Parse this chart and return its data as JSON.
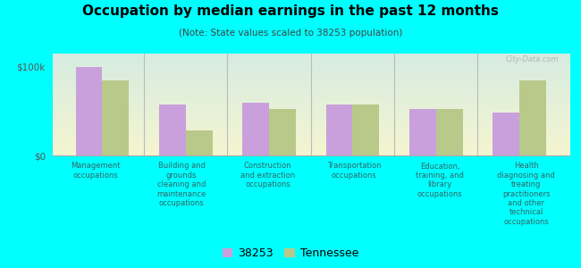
{
  "title": "Occupation by median earnings in the past 12 months",
  "subtitle": "(Note: State values scaled to 38253 population)",
  "categories": [
    "Management\noccupations",
    "Building and\ngrounds\ncleaning and\nmaintenance\noccupations",
    "Construction\nand extraction\noccupations",
    "Transportation\noccupations",
    "Education,\ntraining, and\nlibrary\noccupations",
    "Health\ndiagnosing and\ntreating\npractitioners\nand other\ntechnical\noccupations"
  ],
  "values_38253": [
    100000,
    58000,
    60000,
    57000,
    52000,
    48000
  ],
  "values_tennessee": [
    85000,
    28000,
    52000,
    57000,
    52000,
    85000
  ],
  "color_38253": "#c9a0dc",
  "color_tennessee": "#b8c98a",
  "ylim": [
    0,
    115000
  ],
  "ytick_vals": [
    0,
    100000
  ],
  "ytick_labels": [
    "$0",
    "$100k"
  ],
  "background_top": "#d6ece1",
  "background_bottom": "#f5f5d0",
  "outer_background": "#00ffff",
  "legend_38253": "38253",
  "legend_tennessee": "Tennessee",
  "watermark": "City-Data.com"
}
